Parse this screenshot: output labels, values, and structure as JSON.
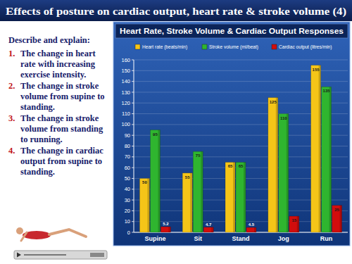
{
  "slide": {
    "title": "Effects of posture on cardiac output, heart rate & stroke volume (4)",
    "prompt": "Describe and explain:",
    "items": [
      {
        "number": "1.",
        "text": "The change in heart rate with increasing exercise intensity."
      },
      {
        "number": "2.",
        "text": "The change in stroke volume from supine to standing."
      },
      {
        "number": "3.",
        "text": "The change in stroke volume from standing to running."
      },
      {
        "number": "4.",
        "text": "The change in cardiac output from supine to standing."
      }
    ]
  },
  "chart_data": {
    "type": "bar",
    "title": "Heart Rate, Stroke Volume & Cardiac Output Responses",
    "categories": [
      "Supine",
      "Sit",
      "Stand",
      "Jog",
      "Run"
    ],
    "series": [
      {
        "name": "Heart rate (beats/min)",
        "color": "#f5c518",
        "values": [
          50,
          55,
          65,
          125,
          155
        ]
      },
      {
        "name": "Stroke volume (ml/beat)",
        "color": "#2fb52f",
        "values": [
          95,
          75,
          65,
          110,
          135
        ]
      },
      {
        "name": "Cardiac output (litres/min)",
        "color": "#d10d0d",
        "values": [
          5.2,
          4.7,
          4.5,
          15,
          25
        ]
      }
    ],
    "ylim": [
      0,
      160
    ],
    "yticks": [
      0,
      10,
      20,
      30,
      40,
      50,
      60,
      70,
      80,
      90,
      100,
      110,
      120,
      130,
      140,
      150,
      160
    ],
    "grid": true,
    "legend": "top",
    "data_labels": true
  }
}
